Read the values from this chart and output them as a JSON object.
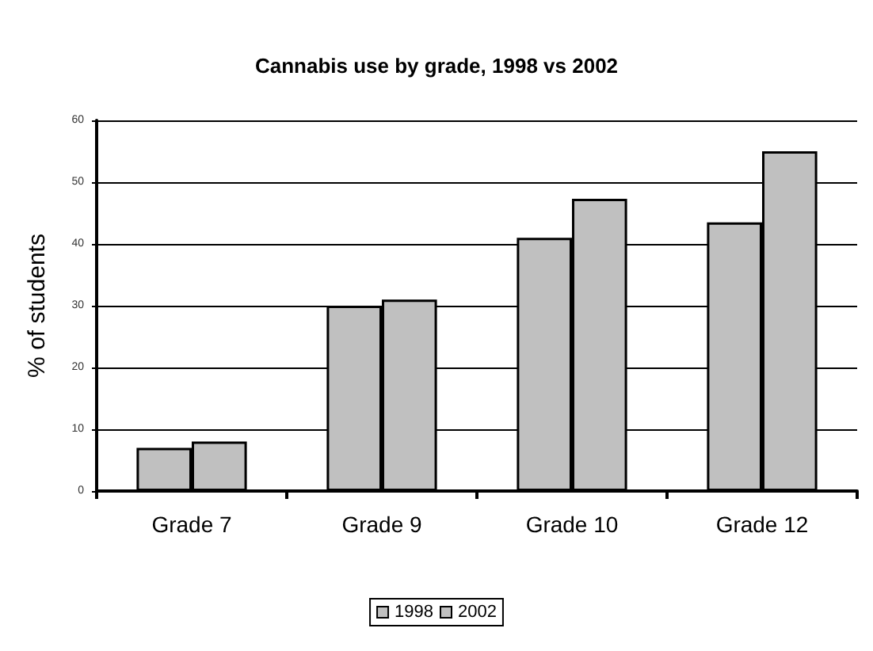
{
  "chart_data": {
    "type": "bar",
    "title": "Cannabis use by grade, 1998 vs 2002",
    "ylabel": "% of students",
    "categories": [
      "Grade 7",
      "Grade 9",
      "Grade 10",
      "Grade 12"
    ],
    "series": [
      {
        "name": "1998",
        "color": "#c0c0c0",
        "values": [
          7,
          30,
          41,
          43.5
        ]
      },
      {
        "name": "2002",
        "color": "#c0c0c0",
        "values": [
          8,
          31,
          47.3,
          55
        ]
      }
    ],
    "ylim": [
      0,
      60
    ],
    "yticks": [
      0,
      10,
      20,
      30,
      40,
      50,
      60
    ],
    "grid": "y",
    "legend": "bottom"
  }
}
